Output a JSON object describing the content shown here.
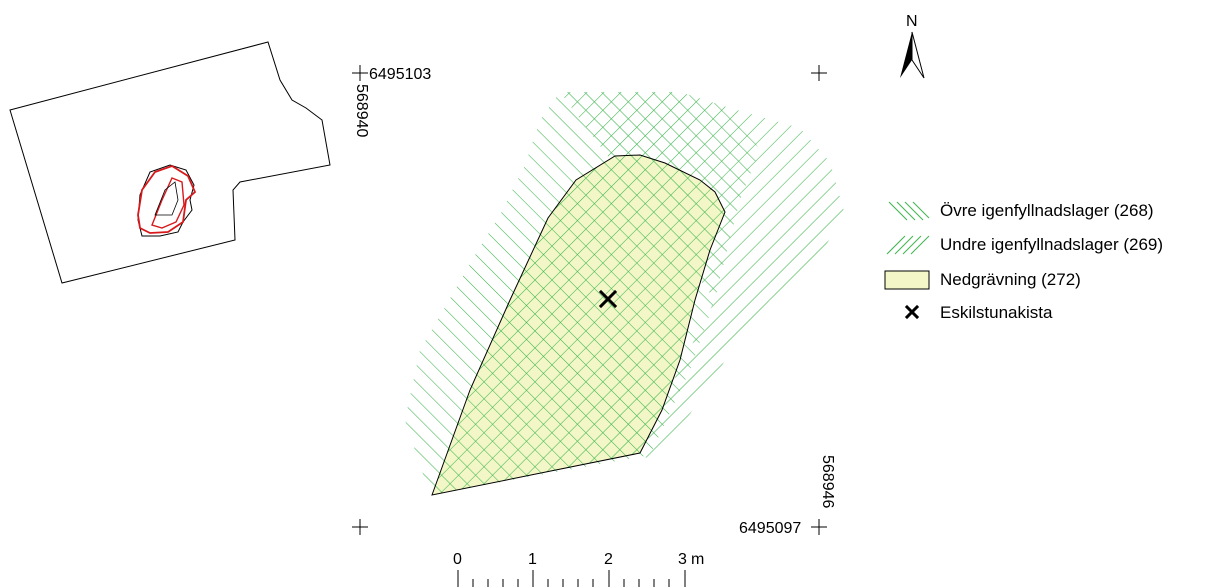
{
  "north_arrow": {
    "label": "N"
  },
  "coordinates": {
    "top_left_northing": "6495103",
    "top_left_easting": "568940",
    "bottom_right_northing": "6495097",
    "bottom_right_easting": "568946"
  },
  "scale_bar": {
    "ticks": [
      "0",
      "1",
      "2",
      "3"
    ],
    "unit": "m"
  },
  "legend": {
    "items": [
      {
        "label": "Övre igenfyllnadslager (268)",
        "symbol": "hatch-descending",
        "color": "#3cb44b"
      },
      {
        "label": "Undre igenfyllnadslager (269)",
        "symbol": "hatch-ascending",
        "color": "#3cb44b"
      },
      {
        "label": "Nedgrävning (272)",
        "symbol": "fill",
        "color": "#f3f7c8"
      },
      {
        "label": "Eskilstunakista",
        "symbol": "x-marker",
        "color": "#000000"
      }
    ]
  },
  "colors": {
    "hatch": "#3cb44b",
    "fill": "#f3f7c8",
    "overview_highlight": "#d7191c"
  }
}
